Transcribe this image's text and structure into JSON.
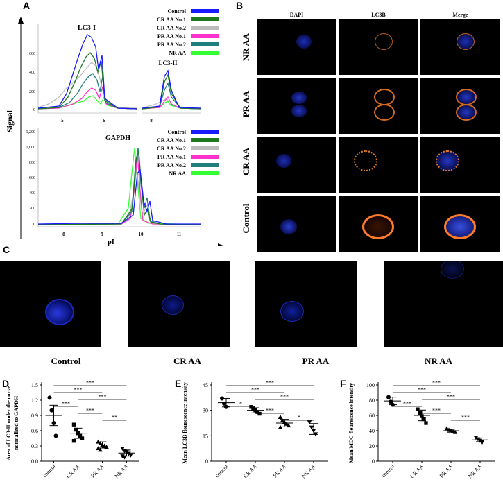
{
  "panels": {
    "A": "A",
    "B": "B",
    "C": "C",
    "D": "D",
    "E": "E",
    "F": "F"
  },
  "panelA": {
    "ylabel": "Signal",
    "xlabel": "pI",
    "lc3i_label": "LC3-I",
    "lc3ii_label": "LC3-II",
    "gapdh_label": "GAPDH",
    "top_yticks": [
      "0",
      "200",
      "400",
      "600"
    ],
    "bottom_yticks": [
      "0",
      "200",
      "400",
      "600",
      "800",
      "1,000",
      "1,200"
    ],
    "top_xticks_left": [
      "5",
      "6"
    ],
    "top_xticks_right": [
      "8"
    ],
    "bottom_xticks": [
      "8",
      "9",
      "10",
      "11"
    ],
    "legend_top": [
      {
        "label": "Control",
        "color": "#1a1aff"
      },
      {
        "label": "CR AA No.1",
        "color": "#1f7a1f"
      },
      {
        "label": "CR AA No.2",
        "color": "#bdbdbd"
      },
      {
        "label": "PR AA No.1",
        "color": "#ff33cc"
      },
      {
        "label": "PR AA No.2",
        "color": "#1f7f7f"
      },
      {
        "label": "NR AA",
        "color": "#33ff33"
      }
    ],
    "legend_bottom": [
      {
        "label": "Control",
        "color": "#1a1aff"
      },
      {
        "label": "CR AA No.1",
        "color": "#1f7a1f"
      },
      {
        "label": "CR AA No.2",
        "color": "#bdbdbd"
      },
      {
        "label": "PR AA No.1",
        "color": "#ff33cc"
      },
      {
        "label": "PR AA No.2",
        "color": "#1f7f7f"
      },
      {
        "label": "NR AA",
        "color": "#33ff33"
      }
    ]
  },
  "panelB": {
    "columns": [
      "DAPI",
      "LC3B",
      "Merge"
    ],
    "rows": [
      "NR AA",
      "PR AA",
      "CR AA",
      "Control"
    ]
  },
  "panelC": {
    "labels": [
      "Control",
      "CR AA",
      "PR AA",
      "NR AA"
    ]
  },
  "chart_data": [
    {
      "type": "scatter",
      "panel": "D",
      "ylabel": "Area of LC3-II under the curve normalized to GAPDH",
      "ylabel_line1": "Area of LC3-II under the curve",
      "ylabel_line2": "normalized to GAPDH",
      "categories": [
        "control",
        "CR AA",
        "PR AA",
        "NR AA"
      ],
      "yticks": [
        "0.0",
        "0.3",
        "0.6",
        "0.9",
        "1.2",
        "1.5"
      ],
      "ylim": [
        0,
        1.5
      ],
      "points": [
        [
          1.25,
          1.0,
          0.75,
          0.5
        ],
        [
          0.72,
          0.62,
          0.55,
          0.5,
          0.45,
          0.4
        ],
        [
          0.38,
          0.35,
          0.32,
          0.3,
          0.28,
          0.25,
          0.22
        ],
        [
          0.25,
          0.2,
          0.18,
          0.15,
          0.12,
          0.1,
          0.08
        ]
      ],
      "mean": [
        0.9,
        0.55,
        0.32,
        0.16
      ],
      "sd": [
        0.2,
        0.1,
        0.06,
        0.06
      ],
      "brackets": [
        {
          "from": 0,
          "to": 1,
          "label": "***"
        },
        {
          "from": 0,
          "to": 2,
          "label": "***"
        },
        {
          "from": 0,
          "to": 3,
          "label": "***"
        },
        {
          "from": 1,
          "to": 2,
          "label": "***"
        },
        {
          "from": 1,
          "to": 3,
          "label": "***"
        },
        {
          "from": 2,
          "to": 3,
          "label": "**"
        }
      ]
    },
    {
      "type": "scatter",
      "panel": "E",
      "ylabel": "Mean LC3B flourescence intensity",
      "categories": [
        "control",
        "CR AA",
        "PR AA",
        "NR AA"
      ],
      "yticks": [
        "0",
        "15",
        "30",
        "45"
      ],
      "ylim": [
        0,
        45
      ],
      "points": [
        [
          37,
          34,
          32
        ],
        [
          32,
          31,
          30,
          29,
          28
        ],
        [
          26,
          24,
          23,
          22,
          21,
          20
        ],
        [
          23,
          20,
          18,
          16
        ]
      ],
      "mean": [
        34.5,
        30,
        22.5,
        19
      ],
      "sd": [
        2.5,
        1.5,
        2.2,
        3.2
      ],
      "brackets": [
        {
          "from": 0,
          "to": 1,
          "label": "*"
        },
        {
          "from": 0,
          "to": 2,
          "label": "***"
        },
        {
          "from": 0,
          "to": 3,
          "label": "***"
        },
        {
          "from": 1,
          "to": 2,
          "label": "***"
        },
        {
          "from": 1,
          "to": 3,
          "label": "***"
        },
        {
          "from": 2,
          "to": 3,
          "label": "*"
        }
      ]
    },
    {
      "type": "scatter",
      "panel": "F",
      "ylabel": "Mean MDC flourescence intensity",
      "categories": [
        "control",
        "CR AA",
        "PR AA",
        "NR AA"
      ],
      "yticks": [
        "0",
        "20",
        "40",
        "60",
        "80",
        "100"
      ],
      "ylim": [
        0,
        100
      ],
      "points": [
        [
          84,
          78,
          74
        ],
        [
          68,
          63,
          59,
          55,
          50
        ],
        [
          43,
          41,
          40,
          39,
          38
        ],
        [
          31,
          29,
          27,
          25
        ]
      ],
      "mean": [
        79,
        60,
        40,
        28
      ],
      "sd": [
        5,
        7,
        2,
        2.5
      ],
      "brackets": [
        {
          "from": 0,
          "to": 1,
          "label": "***"
        },
        {
          "from": 0,
          "to": 2,
          "label": "***"
        },
        {
          "from": 0,
          "to": 3,
          "label": "***"
        },
        {
          "from": 1,
          "to": 2,
          "label": "***"
        },
        {
          "from": 1,
          "to": 3,
          "label": "***"
        },
        {
          "from": 2,
          "to": 3,
          "label": "***"
        }
      ]
    }
  ]
}
